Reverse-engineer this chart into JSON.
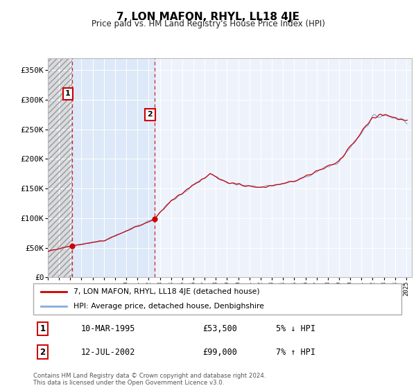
{
  "title": "7, LON MAFON, RHYL, LL18 4JE",
  "subtitle": "Price paid vs. HM Land Registry's House Price Index (HPI)",
  "ylabel_ticks": [
    "£0",
    "£50K",
    "£100K",
    "£150K",
    "£200K",
    "£250K",
    "£300K",
    "£350K"
  ],
  "ytick_values": [
    0,
    50000,
    100000,
    150000,
    200000,
    250000,
    300000,
    350000
  ],
  "ylim": [
    0,
    370000
  ],
  "xlim_start": 1993.0,
  "xlim_end": 2025.5,
  "sale1_x": 1995.19,
  "sale1_y": 53500,
  "sale2_x": 2002.53,
  "sale2_y": 99000,
  "line1_color": "#cc0000",
  "line2_color": "#88aadd",
  "bg_plot": "#eef3fb",
  "bg_between": "#dce8f8",
  "sale1_date": "10-MAR-1995",
  "sale1_price": "£53,500",
  "sale1_hpi": "5% ↓ HPI",
  "sale2_date": "12-JUL-2002",
  "sale2_price": "£99,000",
  "sale2_hpi": "7% ↑ HPI",
  "legend1": "7, LON MAFON, RHYL, LL18 4JE (detached house)",
  "legend2": "HPI: Average price, detached house, Denbighshire",
  "footer": "Contains HM Land Registry data © Crown copyright and database right 2024.\nThis data is licensed under the Open Government Licence v3.0."
}
